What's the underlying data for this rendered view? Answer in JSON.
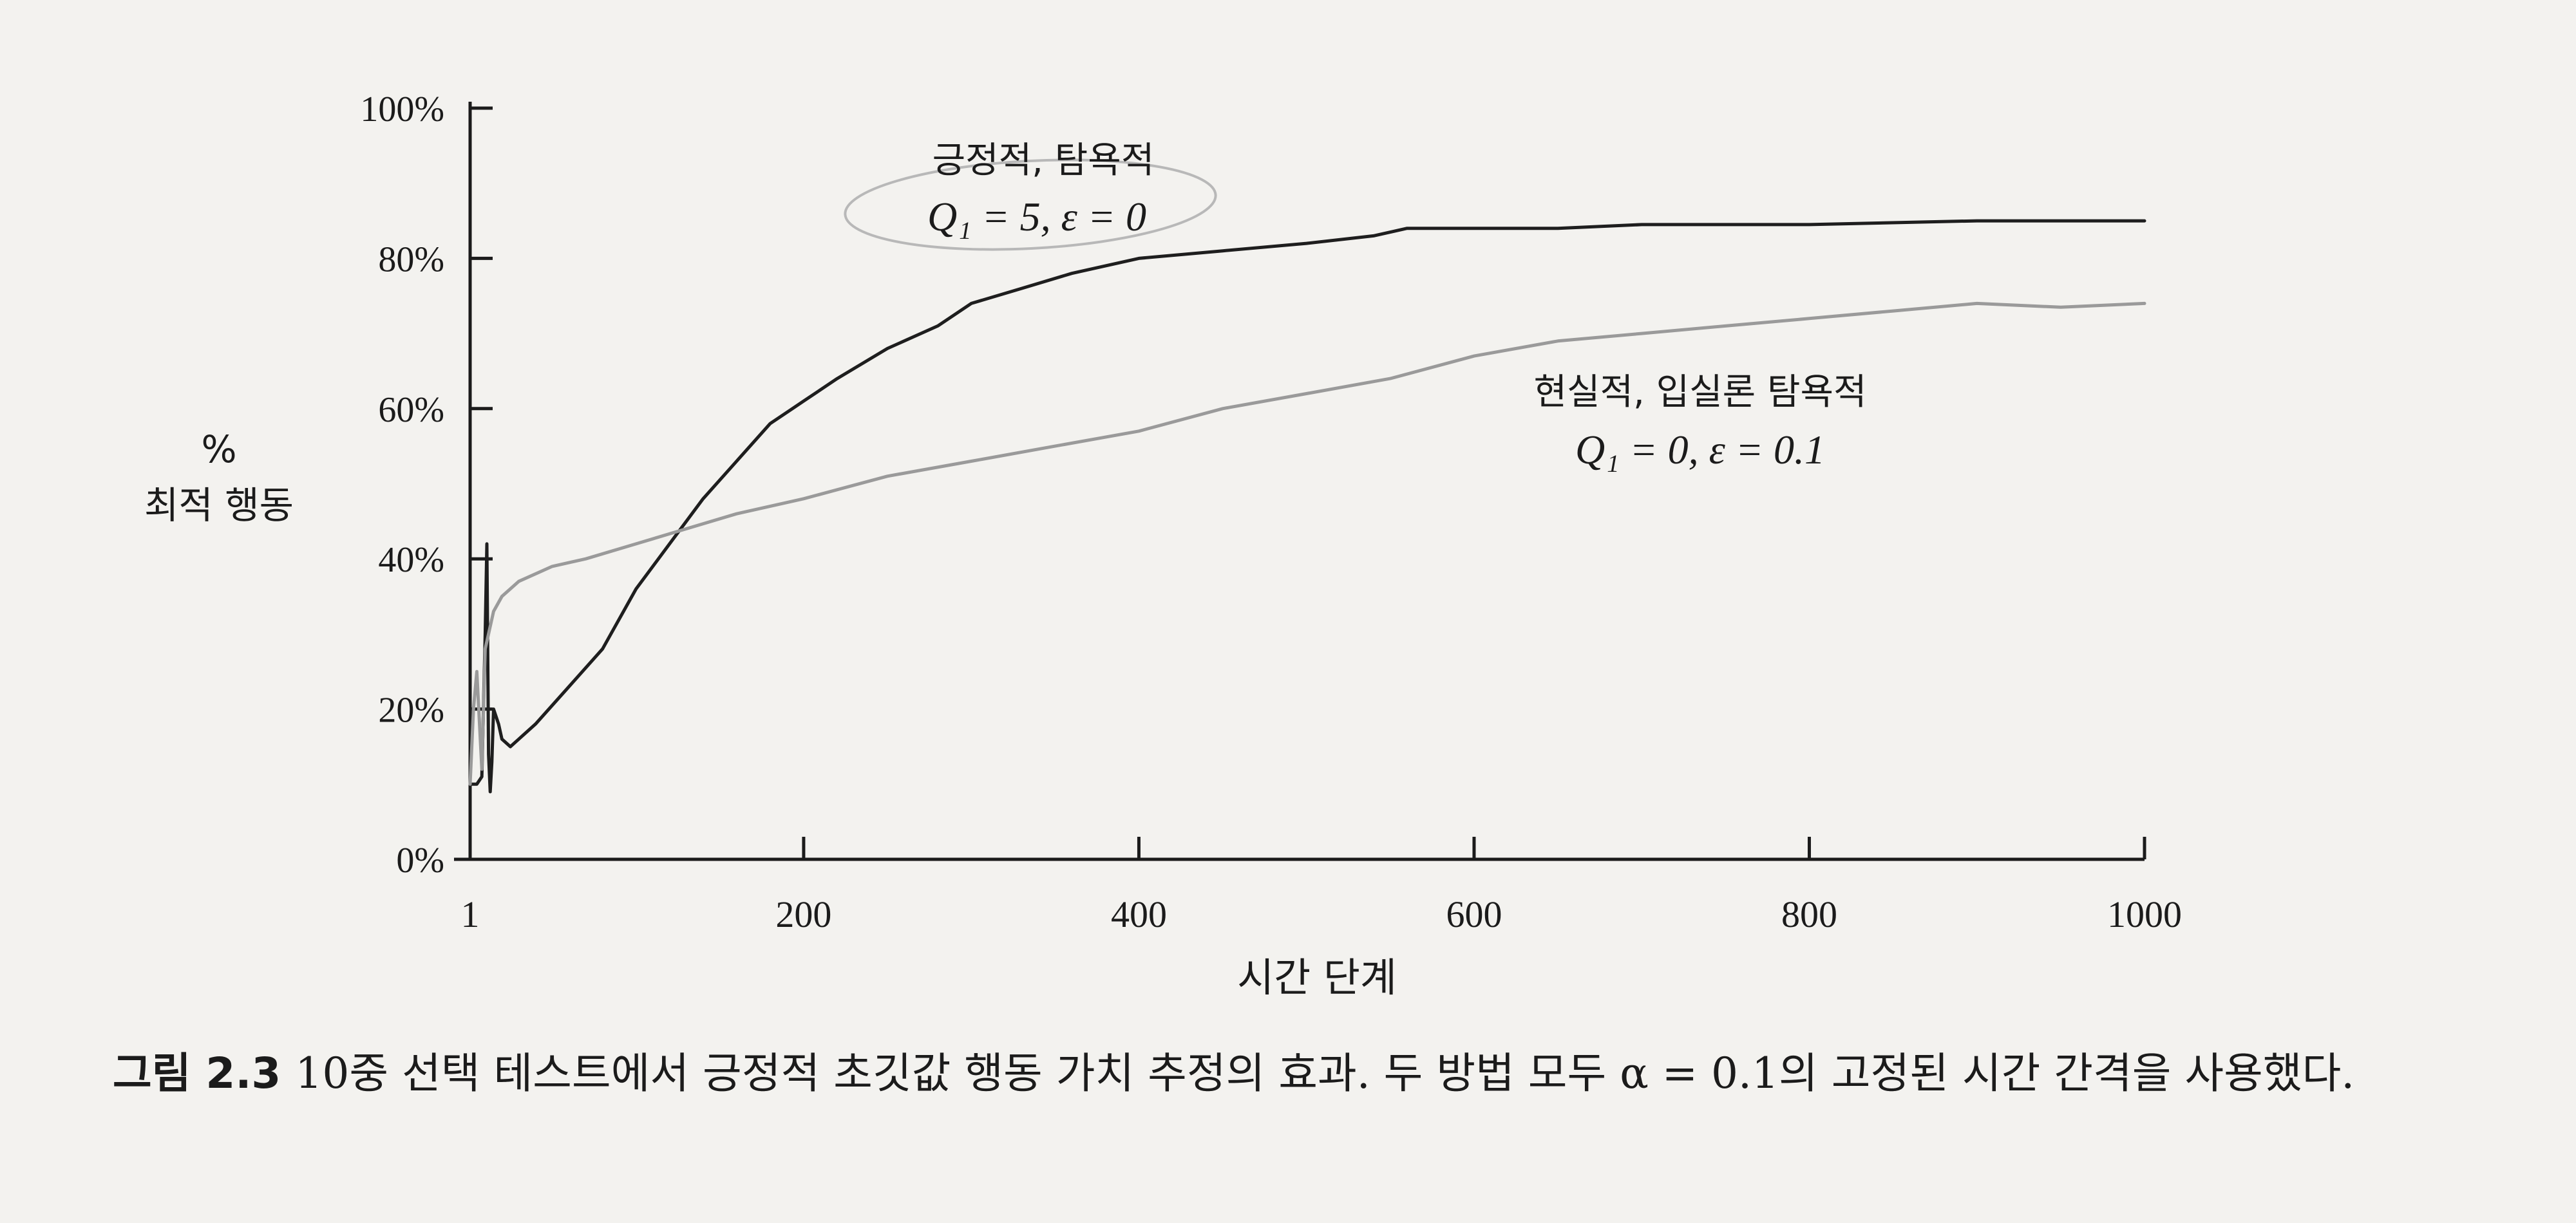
{
  "chart_data": {
    "type": "line",
    "ylabel_line1": "%",
    "ylabel_line2": "최적 행동",
    "xlabel": "시간 단계",
    "xlim": [
      1,
      1000
    ],
    "ylim": [
      0,
      100
    ],
    "x_ticks": [
      "1",
      "200",
      "400",
      "600",
      "800",
      "1000"
    ],
    "x_tick_values": [
      1,
      200,
      400,
      600,
      800,
      1000
    ],
    "y_ticks": [
      "0%",
      "20%",
      "40%",
      "60%",
      "80%",
      "100%"
    ],
    "y_tick_values": [
      0,
      20,
      40,
      60,
      80,
      100
    ],
    "grid": false,
    "series": [
      {
        "name_line1": "긍정적, 탐욕적",
        "name_line2": "Q₁ = 5,  ε = 0",
        "color": "#1e1e1e",
        "x": [
          1,
          5,
          8,
          10,
          11,
          12,
          13,
          14,
          15,
          18,
          20,
          25,
          30,
          40,
          60,
          80,
          100,
          120,
          140,
          160,
          180,
          200,
          220,
          250,
          280,
          300,
          330,
          360,
          400,
          450,
          500,
          540,
          560,
          600,
          650,
          700,
          800,
          900,
          1000
        ],
        "y": [
          10,
          10,
          11,
          30,
          42,
          14,
          9,
          13,
          20,
          18,
          16,
          15,
          16,
          18,
          23,
          28,
          36,
          42,
          48,
          53,
          58,
          61,
          64,
          68,
          71,
          74,
          76,
          78,
          80,
          81,
          82,
          83,
          84,
          84,
          84,
          84.5,
          84.5,
          85,
          85
        ]
      },
      {
        "name_line1": "현실적, 입실론 탐욕적",
        "name_line2": "Q₁ = 0,  ε = 0.1",
        "color": "#9a9a9a",
        "x": [
          1,
          3,
          5,
          8,
          10,
          12,
          15,
          20,
          30,
          50,
          70,
          100,
          130,
          160,
          200,
          250,
          300,
          350,
          400,
          450,
          500,
          550,
          600,
          650,
          700,
          750,
          800,
          850,
          900,
          950,
          1000
        ],
        "y": [
          10,
          20,
          25,
          12,
          28,
          30,
          33,
          35,
          37,
          39,
          40,
          42,
          44,
          46,
          48,
          51,
          53,
          55,
          57,
          60,
          62,
          64,
          67,
          69,
          70,
          71,
          72,
          73,
          74,
          73.5,
          74
        ]
      }
    ]
  },
  "caption": {
    "label": "그림 2.3",
    "text": "10중 선택 테스트에서 긍정적 초깃값 행동 가치 추정의 효과. 두 방법 모두 α = 0.1의 고정된 시간 간격을 사용했다."
  }
}
